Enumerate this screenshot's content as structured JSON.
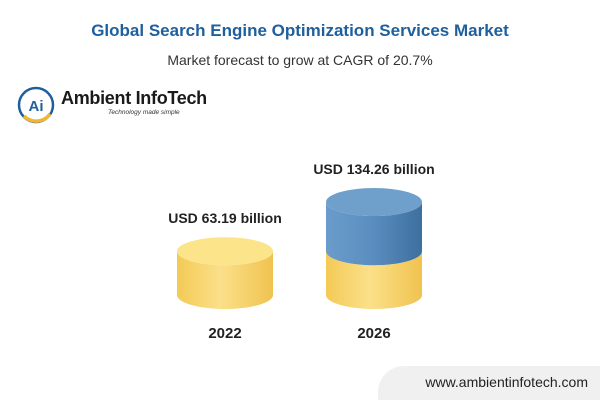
{
  "colors": {
    "title": "#1f5f9e",
    "gold_light": "#fbe48a",
    "gold": "#f5cf5e",
    "gold_dark": "#e6b53d",
    "blue_light": "#6fa0cc",
    "blue": "#4f84b6",
    "blue_dark": "#3a6b9a"
  },
  "logo": {
    "icon": "ai-circle-logo",
    "monogram": "Ai",
    "name": "Ambient InfoTech",
    "tagline": "Technology made simple"
  },
  "footer": {
    "website": "www.ambientinfotech.com"
  },
  "chart_data": {
    "type": "bar",
    "title": "Global Search Engine Optimization Services Market",
    "subtitle": "Market forecast to grow at CAGR of 20.7%",
    "categories": [
      "2022",
      "2026"
    ],
    "values": [
      63.19,
      134.26
    ],
    "value_labels": [
      "USD 63.19 billion",
      "USD 134.26 billion"
    ],
    "baseline_value": 63.19,
    "grid": false,
    "legend": "none"
  }
}
